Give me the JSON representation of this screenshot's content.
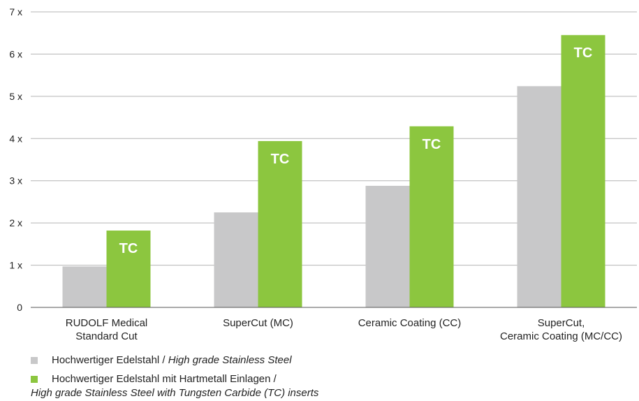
{
  "chart_data": {
    "type": "bar",
    "title": "",
    "categories": [
      [
        "RUDOLF Medical",
        "Standard Cut"
      ],
      [
        "SuperCut (MC)"
      ],
      [
        "Ceramic Coating (CC)"
      ],
      [
        "SuperCut,",
        "Ceramic Coating (MC/CC)"
      ]
    ],
    "series": [
      {
        "name": "Hochwertiger Edelstahl / High grade Stainless Steel",
        "color": "#c8c8c9",
        "values": [
          0.97,
          2.25,
          2.88,
          5.24
        ]
      },
      {
        "name": "Hochwertiger Edelstahl mit Hartmetall Einlagen / High grade Stainless Steel with Tungsten Carbide (TC) inserts",
        "color": "#8cc63f",
        "values": [
          1.82,
          3.94,
          4.29,
          6.45
        ],
        "bar_label": "TC"
      }
    ],
    "ylim": [
      0,
      7
    ],
    "yticks": [
      "0",
      "1 x",
      "2 x",
      "3 x",
      "4 x",
      "5 x",
      "6 x",
      "7 x"
    ],
    "grid": true,
    "legend_position": "bottom-left"
  },
  "legend": [
    {
      "color": "#c8c8c9",
      "de": "Hochwertiger Edelstahl / ",
      "en": "High grade Stainless Steel"
    },
    {
      "color": "#8cc63f",
      "de": "Hochwertiger Edelstahl mit Hartmetall Einlagen /",
      "en": "High grade Stainless Steel with Tungsten Carbide (TC) inserts"
    }
  ]
}
